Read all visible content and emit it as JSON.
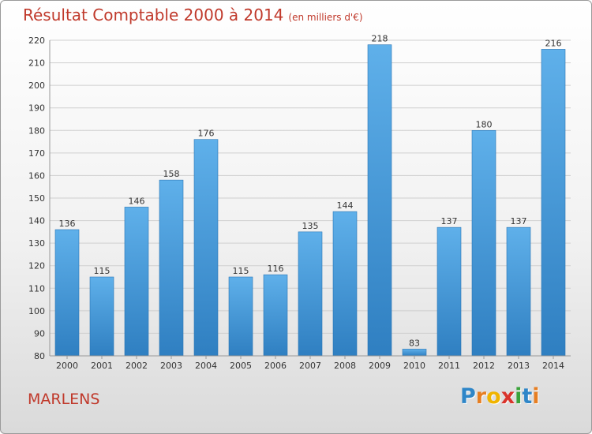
{
  "chart_data": {
    "type": "bar",
    "title": "Résultat Comptable 2000 à 2014",
    "subtitle": "(en milliers d'€)",
    "categories": [
      "2000",
      "2001",
      "2002",
      "2003",
      "2004",
      "2005",
      "2006",
      "2007",
      "2008",
      "2009",
      "2010",
      "2011",
      "2012",
      "2013",
      "2014"
    ],
    "values": [
      136,
      115,
      146,
      158,
      176,
      115,
      116,
      135,
      144,
      218,
      83,
      137,
      180,
      137,
      216
    ],
    "ylim": [
      80,
      220
    ],
    "yticks": [
      80,
      90,
      100,
      110,
      120,
      130,
      140,
      150,
      160,
      170,
      180,
      190,
      200,
      210,
      220
    ],
    "grid": true,
    "bar_color": "#4ea3dd"
  },
  "footer": {
    "city": "MARLENS",
    "logo_letters": [
      {
        "ch": "P",
        "color": "#2e86c8"
      },
      {
        "ch": "r",
        "color": "#e67e22"
      },
      {
        "ch": "o",
        "color": "#f0b400"
      },
      {
        "ch": "x",
        "color": "#d9342b"
      },
      {
        "ch": "i",
        "color": "#3aa33a"
      },
      {
        "ch": "t",
        "color": "#2e86c8"
      },
      {
        "ch": "i",
        "color": "#e67e22"
      }
    ]
  }
}
